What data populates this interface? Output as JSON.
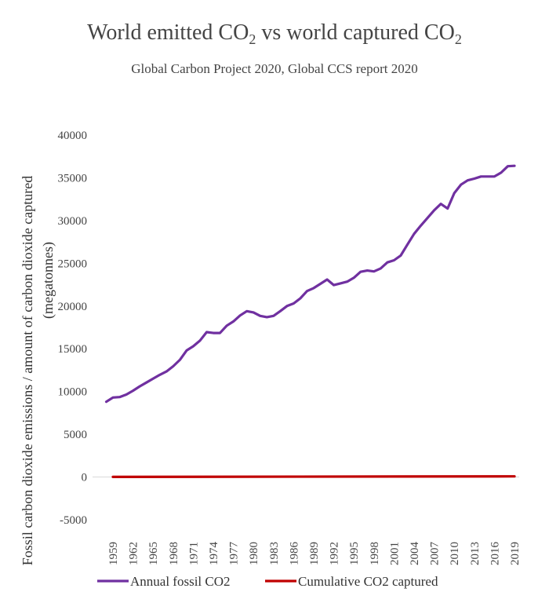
{
  "chart_data": {
    "type": "line",
    "title_main": "World emitted CO",
    "title_sub": "2",
    "title_mid": " vs world captured CO",
    "title_sub2": "2",
    "subtitle": "Global Carbon Project 2020, Global CCS report 2020",
    "ylabel_line1": "Fossil carbon dioxide emissions / amount of carbon dioxide captured",
    "ylabel_line2": "(megatonnes)",
    "ylim": [
      -5000,
      40000
    ],
    "yticks": [
      "40000",
      "35000",
      "30000",
      "25000",
      "20000",
      "15000",
      "10000",
      "5000",
      "0",
      "-5000"
    ],
    "xtick_labels": [
      "1959",
      "1962",
      "1965",
      "1968",
      "1971",
      "1974",
      "1977",
      "1980",
      "1983",
      "1986",
      "1989",
      "1992",
      "1995",
      "1998",
      "2001",
      "2004",
      "2007",
      "2010",
      "2013",
      "2016",
      "2019"
    ],
    "xlim": [
      1959,
      2019
    ],
    "grid": false,
    "legend_position": "bottom",
    "series": [
      {
        "name": "Annual fossil CO2",
        "color": "#7030A0",
        "x": [
          1958,
          1959,
          1960,
          1961,
          1962,
          1963,
          1964,
          1965,
          1966,
          1967,
          1968,
          1969,
          1970,
          1971,
          1972,
          1973,
          1974,
          1975,
          1976,
          1977,
          1978,
          1979,
          1980,
          1981,
          1982,
          1983,
          1984,
          1985,
          1986,
          1987,
          1988,
          1989,
          1990,
          1991,
          1992,
          1993,
          1994,
          1995,
          1996,
          1997,
          1998,
          1999,
          2000,
          2001,
          2002,
          2003,
          2004,
          2005,
          2006,
          2007,
          2008,
          2009,
          2010,
          2011,
          2012,
          2013,
          2014,
          2015,
          2016,
          2017,
          2018,
          2019
        ],
        "values": [
          8800,
          9300,
          9350,
          9650,
          10100,
          10600,
          11050,
          11500,
          11950,
          12350,
          12950,
          13700,
          14800,
          15300,
          15950,
          16950,
          16850,
          16850,
          17700,
          18200,
          18900,
          19400,
          19250,
          18850,
          18700,
          18850,
          19400,
          20000,
          20300,
          20900,
          21750,
          22100,
          22600,
          23100,
          22450,
          22650,
          22850,
          23300,
          24000,
          24150,
          24050,
          24400,
          25100,
          25350,
          25900,
          27200,
          28450,
          29400,
          30300,
          31200,
          31950,
          31400,
          33200,
          34200,
          34700,
          34900,
          35150,
          35150,
          35150,
          35600,
          36350,
          36400
        ]
      },
      {
        "name": "Cumulative CO2 captured",
        "color": "#C00000",
        "x": [
          1959,
          2019
        ],
        "values": [
          10,
          80
        ]
      }
    ]
  }
}
